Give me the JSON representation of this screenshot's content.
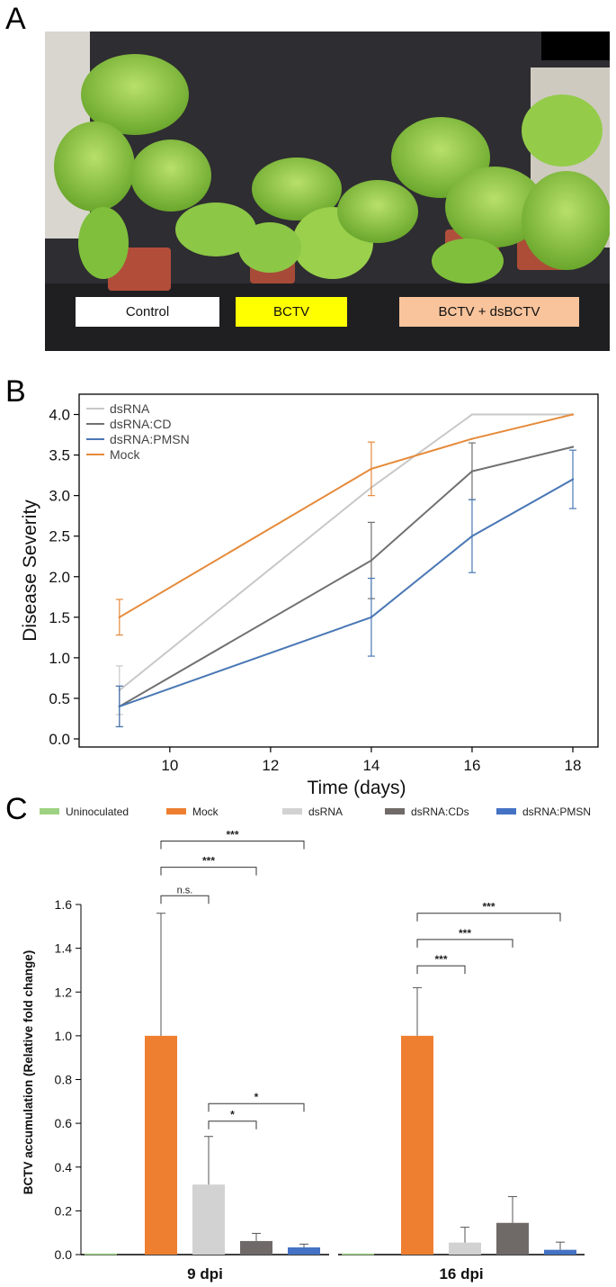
{
  "panels": {
    "a": "A",
    "b": "B",
    "c": "C"
  },
  "photo": {
    "labels": [
      {
        "text": "Control",
        "color": "#ffffff"
      },
      {
        "text": "BCTV",
        "color": "#ffff00"
      },
      {
        "text": "BCTV + dsBCTV",
        "color": "#f9c49c"
      }
    ]
  },
  "chart_data": [
    {
      "type": "line",
      "title": "",
      "xlabel": "Time (days)",
      "ylabel": "Disease Severity",
      "x": [
        9,
        14,
        16,
        18
      ],
      "xticks": [
        10,
        12,
        14,
        16,
        18
      ],
      "yticks": [
        "0.0",
        "0.5",
        "1.0",
        "1.5",
        "2.0",
        "2.5",
        "3.0",
        "3.5",
        "4.0"
      ],
      "xlim": [
        8.2,
        18.5
      ],
      "ylim": [
        -0.1,
        4.25
      ],
      "legend": "top-left",
      "series": [
        {
          "name": "dsRNA",
          "color": "#c8c8c8",
          "values": [
            0.6,
            3.1,
            4.0,
            4.0
          ],
          "err": [
            0.3,
            0.0,
            0.0,
            0.0
          ]
        },
        {
          "name": "dsRNA:CD",
          "color": "#707070",
          "values": [
            0.4,
            2.2,
            3.3,
            3.6
          ],
          "err": [
            0.25,
            0.47,
            0.35,
            0.0
          ]
        },
        {
          "name": "dsRNA:PMSN",
          "color": "#4a78b5",
          "values": [
            0.4,
            1.5,
            2.5,
            3.2
          ],
          "err": [
            0.25,
            0.48,
            0.45,
            0.36
          ]
        },
        {
          "name": "Mock",
          "color": "#e58a3a",
          "values": [
            1.5,
            3.33,
            3.7,
            4.0
          ],
          "err": [
            0.22,
            0.33,
            0.0,
            0.0
          ]
        }
      ]
    },
    {
      "type": "bar",
      "title": "",
      "ylabel": "BCTV accumulation (Relative fold change)",
      "ylim": [
        0,
        1.6
      ],
      "yticks": [
        "0.0",
        "0.2",
        "0.4",
        "0.6",
        "0.8",
        "1.0",
        "1.2",
        "1.4",
        "1.6"
      ],
      "legend": "top",
      "categories": [
        "9 dpi",
        "16 dpi"
      ],
      "series": [
        {
          "name": "Uninoculated",
          "color": "#9ed283",
          "values": [
            0.005,
            0.005
          ],
          "err": [
            0.005,
            0.005
          ]
        },
        {
          "name": "Mock",
          "color": "#ee7f31",
          "values": [
            1.0,
            1.0
          ],
          "err": [
            0.56,
            0.22
          ]
        },
        {
          "name": "dsRNA",
          "color": "#d2d2d2",
          "values": [
            0.32,
            0.055
          ],
          "err": [
            0.22,
            0.07
          ]
        },
        {
          "name": "dsRNA:CDs",
          "color": "#6f6a68",
          "values": [
            0.062,
            0.145
          ],
          "err": [
            0.035,
            0.12
          ]
        },
        {
          "name": "dsRNA:PMSN",
          "color": "#4472c4",
          "values": [
            0.033,
            0.022
          ],
          "err": [
            0.015,
            0.035
          ]
        }
      ],
      "annotations": [
        {
          "group": 0,
          "from": 1,
          "to": 2,
          "y": 1.64,
          "text": "n.s."
        },
        {
          "group": 0,
          "from": 1,
          "to": 3,
          "y": 1.77,
          "text": "***"
        },
        {
          "group": 0,
          "from": 1,
          "to": 4,
          "y": 1.89,
          "text": "***"
        },
        {
          "group": 0,
          "from": 2,
          "to": 3,
          "y": 0.61,
          "text": "*"
        },
        {
          "group": 0,
          "from": 2,
          "to": 4,
          "y": 0.69,
          "text": "*"
        },
        {
          "group": 1,
          "from": 1,
          "to": 2,
          "y": 1.32,
          "text": "***"
        },
        {
          "group": 1,
          "from": 1,
          "to": 3,
          "y": 1.44,
          "text": "***"
        },
        {
          "group": 1,
          "from": 1,
          "to": 4,
          "y": 1.56,
          "text": "***"
        }
      ]
    }
  ]
}
